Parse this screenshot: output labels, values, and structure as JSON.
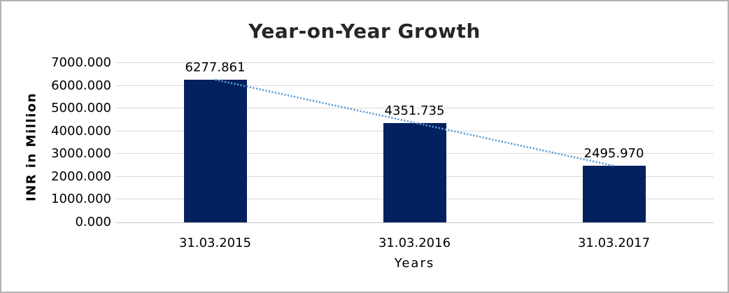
{
  "frame": {
    "background": "#ffffff",
    "border_color": "#b3b3b3"
  },
  "chart_data": {
    "type": "bar",
    "title": "Year-on-Year Growth",
    "xlabel": "Years",
    "ylabel": "INR in Million",
    "categories": [
      "31.03.2015",
      "31.03.2016",
      "31.03.2017"
    ],
    "values": [
      6277.861,
      4351.735,
      2495.97
    ],
    "data_labels": [
      "6277.861",
      "4351.735",
      "2495.970"
    ],
    "ylim": [
      0,
      7000
    ],
    "ytick_interval": 1000,
    "ytick_labels": [
      "0.000",
      "1000.000",
      "2000.000",
      "3000.000",
      "4000.000",
      "5000.000",
      "6000.000",
      "7000.000"
    ],
    "grid": "horizontal",
    "legend": "none",
    "trendline": {
      "type": "linear",
      "style": "dotted"
    },
    "colors": {
      "bar": "#02215e",
      "trendline": "#5b9bd5",
      "gridline": "#d9d9d9",
      "baseline": "#c9c9c9",
      "title_text": "#262626",
      "axis_text": "#000000"
    }
  }
}
